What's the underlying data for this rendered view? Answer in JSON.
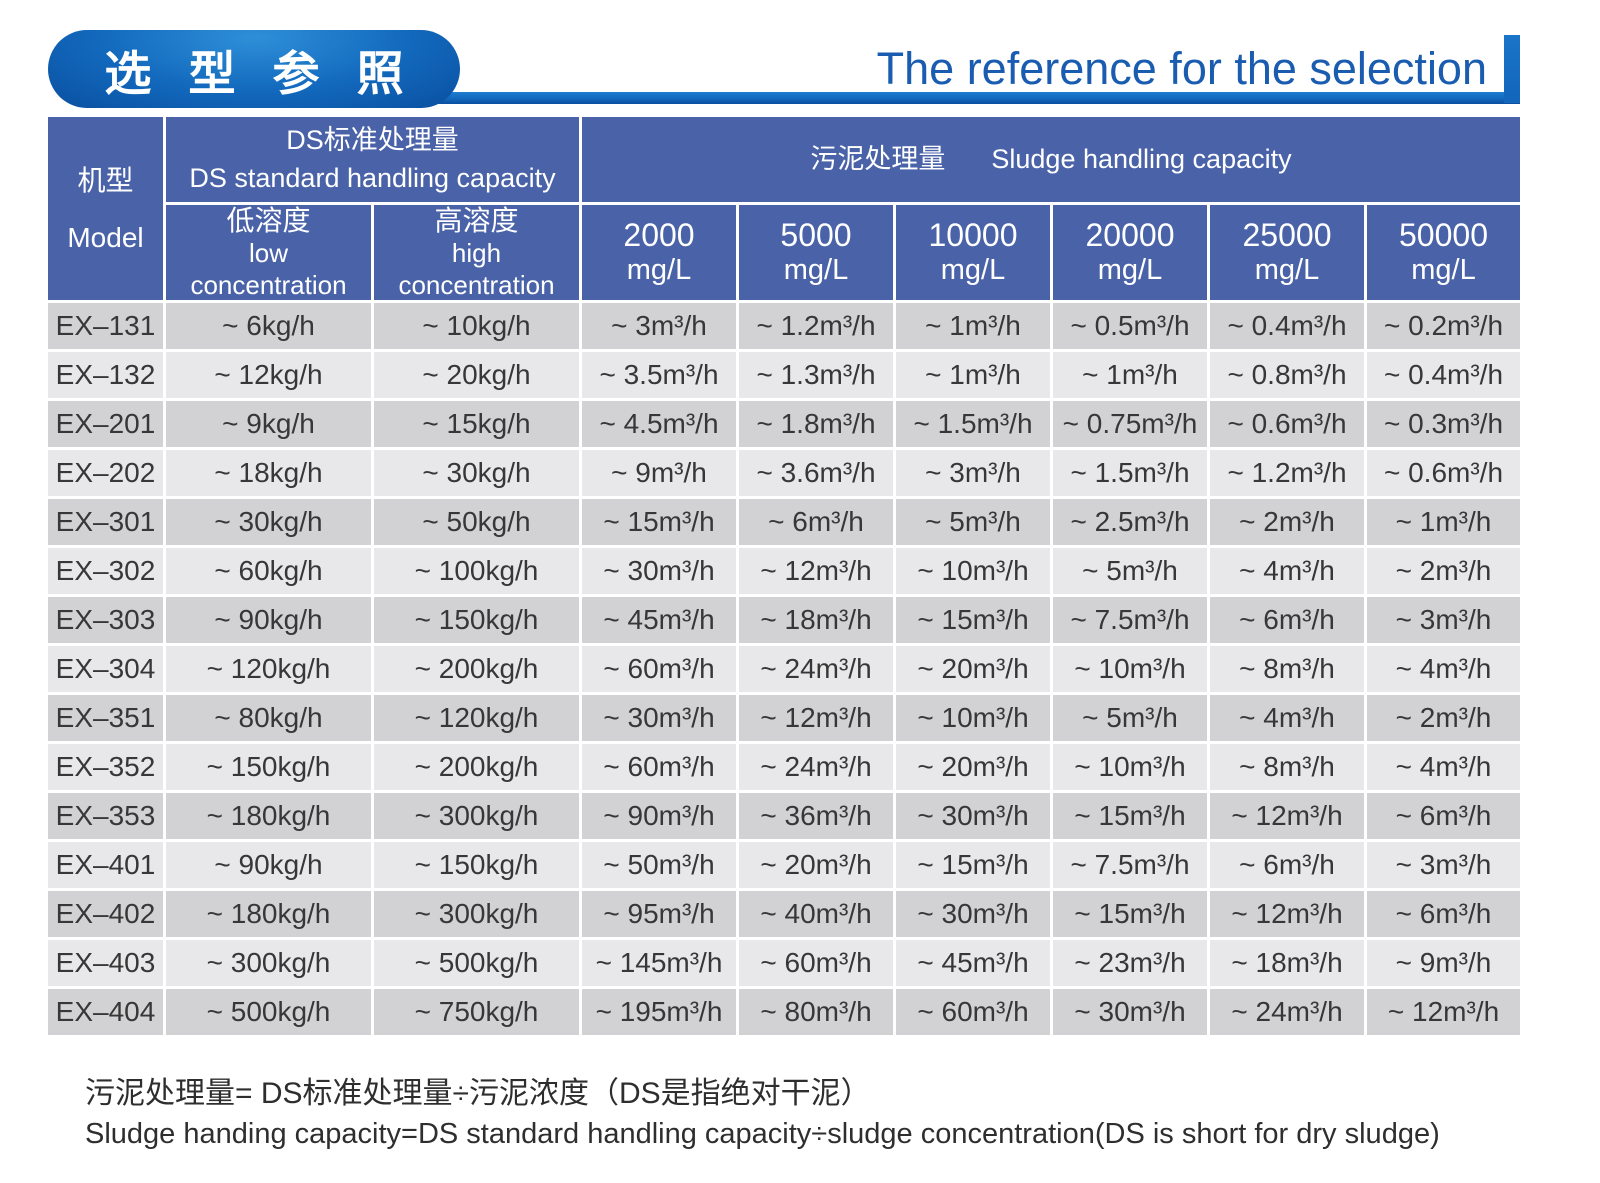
{
  "page": {
    "title_zh": "选 型 参 照",
    "title_en": "The reference for the selection"
  },
  "table": {
    "model_header": {
      "zh": "机型",
      "en": "Model"
    },
    "ds_group": {
      "zh": "DS标准处理量",
      "en": "DS standard handling capacity"
    },
    "sludge_group": {
      "zh": "污泥处理量",
      "en": "Sludge handling capacity"
    },
    "ds_columns": [
      {
        "zh": "低溶度",
        "en": "low concentration"
      },
      {
        "zh": "高溶度",
        "en": "high concentration"
      }
    ],
    "sludge_columns": [
      {
        "value": "2000",
        "unit": "mg/L"
      },
      {
        "value": "5000",
        "unit": "mg/L"
      },
      {
        "value": "10000",
        "unit": "mg/L"
      },
      {
        "value": "20000",
        "unit": "mg/L"
      },
      {
        "value": "25000",
        "unit": "mg/L"
      },
      {
        "value": "50000",
        "unit": "mg/L"
      }
    ],
    "rows": [
      {
        "model": "EX–131",
        "values": [
          "~ 6kg/h",
          "~ 10kg/h",
          "~ 3m³/h",
          "~ 1.2m³/h",
          "~ 1m³/h",
          "~ 0.5m³/h",
          "~ 0.4m³/h",
          "~ 0.2m³/h"
        ]
      },
      {
        "model": "EX–132",
        "values": [
          "~ 12kg/h",
          "~ 20kg/h",
          "~ 3.5m³/h",
          "~ 1.3m³/h",
          "~ 1m³/h",
          "~ 1m³/h",
          "~ 0.8m³/h",
          "~ 0.4m³/h"
        ]
      },
      {
        "model": "EX–201",
        "values": [
          "~ 9kg/h",
          "~ 15kg/h",
          "~ 4.5m³/h",
          "~ 1.8m³/h",
          "~ 1.5m³/h",
          "~ 0.75m³/h",
          "~ 0.6m³/h",
          "~ 0.3m³/h"
        ]
      },
      {
        "model": "EX–202",
        "values": [
          "~ 18kg/h",
          "~ 30kg/h",
          "~ 9m³/h",
          "~ 3.6m³/h",
          "~ 3m³/h",
          "~ 1.5m³/h",
          "~ 1.2m³/h",
          "~ 0.6m³/h"
        ]
      },
      {
        "model": "EX–301",
        "values": [
          "~ 30kg/h",
          "~ 50kg/h",
          "~ 15m³/h",
          "~ 6m³/h",
          "~ 5m³/h",
          "~ 2.5m³/h",
          "~ 2m³/h",
          "~ 1m³/h"
        ]
      },
      {
        "model": "EX–302",
        "values": [
          "~ 60kg/h",
          "~ 100kg/h",
          "~ 30m³/h",
          "~ 12m³/h",
          "~ 10m³/h",
          "~ 5m³/h",
          "~ 4m³/h",
          "~ 2m³/h"
        ]
      },
      {
        "model": "EX–303",
        "values": [
          "~ 90kg/h",
          "~ 150kg/h",
          "~ 45m³/h",
          "~ 18m³/h",
          "~ 15m³/h",
          "~ 7.5m³/h",
          "~ 6m³/h",
          "~ 3m³/h"
        ]
      },
      {
        "model": "EX–304",
        "values": [
          "~ 120kg/h",
          "~ 200kg/h",
          "~ 60m³/h",
          "~ 24m³/h",
          "~ 20m³/h",
          "~ 10m³/h",
          "~ 8m³/h",
          "~ 4m³/h"
        ]
      },
      {
        "model": "EX–351",
        "values": [
          "~ 80kg/h",
          "~ 120kg/h",
          "~ 30m³/h",
          "~ 12m³/h",
          "~ 10m³/h",
          "~ 5m³/h",
          "~ 4m³/h",
          "~ 2m³/h"
        ]
      },
      {
        "model": "EX–352",
        "values": [
          "~ 150kg/h",
          "~ 200kg/h",
          "~ 60m³/h",
          "~ 24m³/h",
          "~ 20m³/h",
          "~ 10m³/h",
          "~ 8m³/h",
          "~ 4m³/h"
        ]
      },
      {
        "model": "EX–353",
        "values": [
          "~ 180kg/h",
          "~ 300kg/h",
          "~ 90m³/h",
          "~ 36m³/h",
          "~ 30m³/h",
          "~ 15m³/h",
          "~ 12m³/h",
          "~ 6m³/h"
        ]
      },
      {
        "model": "EX–401",
        "values": [
          "~ 90kg/h",
          "~ 150kg/h",
          "~ 50m³/h",
          "~ 20m³/h",
          "~ 15m³/h",
          "~ 7.5m³/h",
          "~ 6m³/h",
          "~ 3m³/h"
        ]
      },
      {
        "model": "EX–402",
        "values": [
          "~ 180kg/h",
          "~ 300kg/h",
          "~ 95m³/h",
          "~ 40m³/h",
          "~ 30m³/h",
          "~ 15m³/h",
          "~ 12m³/h",
          "~ 6m³/h"
        ]
      },
      {
        "model": "EX–403",
        "values": [
          "~ 300kg/h",
          "~ 500kg/h",
          "~ 145m³/h",
          "~ 60m³/h",
          "~ 45m³/h",
          "~ 23m³/h",
          "~ 18m³/h",
          "~ 9m³/h"
        ]
      },
      {
        "model": "EX–404",
        "values": [
          "~ 500kg/h",
          "~ 750kg/h",
          "~ 195m³/h",
          "~ 80m³/h",
          "~ 60m³/h",
          "~ 30m³/h",
          "~ 24m³/h",
          "~ 12m³/h"
        ]
      }
    ]
  },
  "notes": {
    "zh": "污泥处理量= DS标准处理量÷污泥浓度（DS是指绝对干泥）",
    "en": "Sludge handing capacity=DS standard handling capacity÷sludge concentration(DS is short for dry sludge)"
  },
  "colors": {
    "header_blue": "#4a63a8",
    "row_dark": "#d2d2d4",
    "row_light": "#e8e8ea",
    "accent_blue": "#1266bb",
    "accent_blue_light": "#1e7fd2",
    "title_text_blue": "#1a5cb0"
  }
}
